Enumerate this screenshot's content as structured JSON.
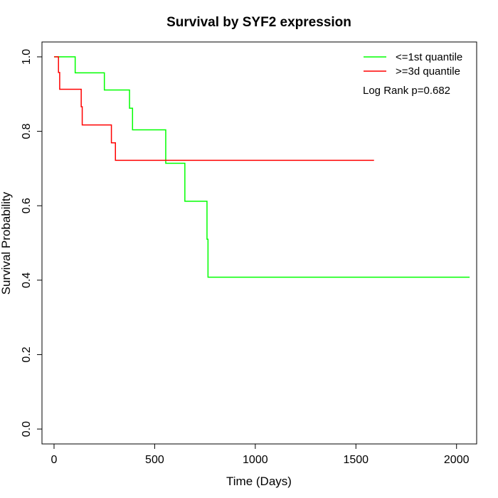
{
  "chart_data": {
    "type": "line",
    "title": "Survival by SYF2 expression",
    "xlabel": "Time (Days)",
    "ylabel": "Survival Probability",
    "xlim": [
      -60,
      2100
    ],
    "ylim": [
      -0.04,
      1.04
    ],
    "x_ticks": [
      0,
      500,
      1000,
      1500,
      2000
    ],
    "x_tick_labels": [
      "0",
      "500",
      "1000",
      "1500",
      "2000"
    ],
    "y_ticks": [
      0,
      0.2,
      0.4,
      0.6,
      0.8,
      1.0
    ],
    "y_tick_labels": [
      "0.0",
      "0.2",
      "0.4",
      "0.6",
      "0.8",
      "1.0"
    ],
    "grid": false,
    "legend_position": "top-right",
    "annotation": "Log Rank p=0.682",
    "series": [
      {
        "name": "<=1st quantile",
        "color": "#00ff00",
        "steps": [
          [
            0,
            1.0
          ],
          [
            105,
            0.957
          ],
          [
            250,
            0.911
          ],
          [
            375,
            0.862
          ],
          [
            390,
            0.804
          ],
          [
            555,
            0.714
          ],
          [
            650,
            0.612
          ],
          [
            760,
            0.51
          ],
          [
            765,
            0.408
          ],
          [
            2065,
            0.408
          ]
        ]
      },
      {
        "name": ">=3d quantile",
        "color": "#ff0000",
        "steps": [
          [
            0,
            1.0
          ],
          [
            22,
            0.958
          ],
          [
            28,
            0.913
          ],
          [
            135,
            0.866
          ],
          [
            140,
            0.817
          ],
          [
            285,
            0.769
          ],
          [
            305,
            0.722
          ],
          [
            1590,
            0.722
          ]
        ]
      }
    ]
  }
}
